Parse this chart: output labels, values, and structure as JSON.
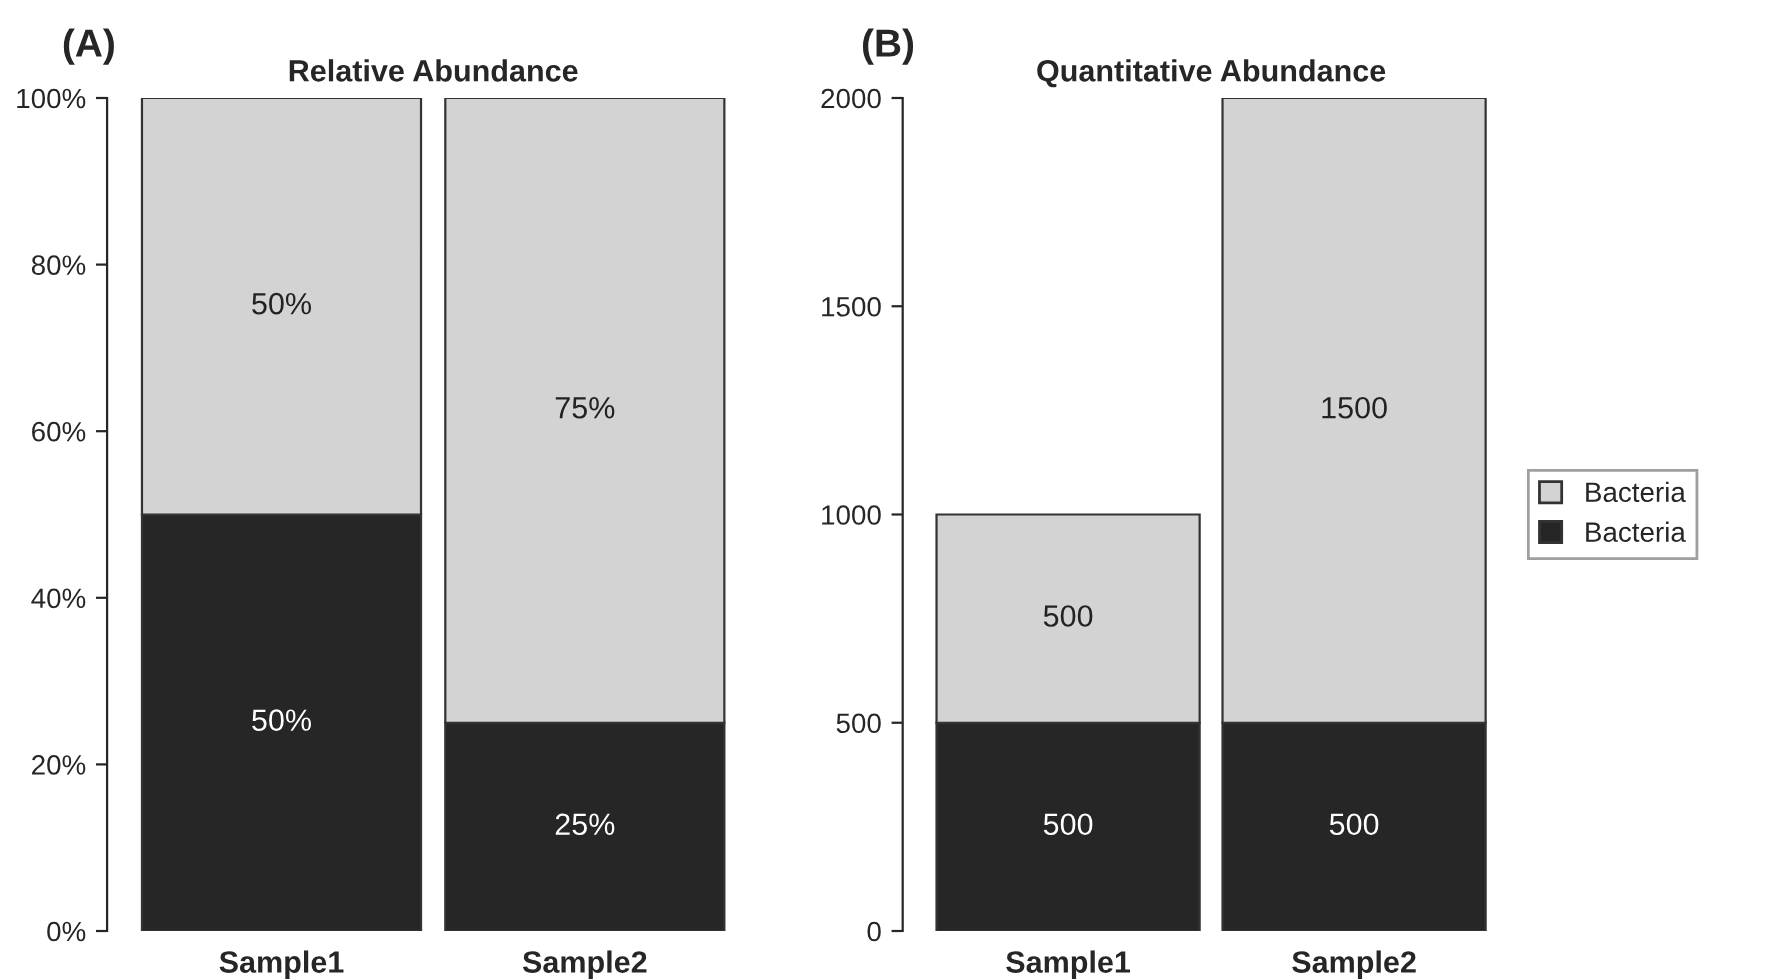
{
  "chart_data": [
    {
      "type": "bar",
      "title": "Relative Abundance",
      "annotations": [
        "(A)"
      ],
      "categories": [
        "Sample1",
        "Sample2"
      ],
      "stacked": true,
      "ylim": [
        0,
        100
      ],
      "yticks": [
        {
          "value": 0,
          "label": "0%"
        },
        {
          "value": 20,
          "label": "20%"
        },
        {
          "value": 40,
          "label": "40%"
        },
        {
          "value": 60,
          "label": "60%"
        },
        {
          "value": 80,
          "label": "80%"
        },
        {
          "value": 100,
          "label": "100%"
        }
      ],
      "series": [
        {
          "color": "#262626",
          "values": [
            50,
            25
          ],
          "value_labels": [
            "50%",
            "25%"
          ]
        },
        {
          "color": "#d3d3d3",
          "values": [
            50,
            75
          ],
          "value_labels": [
            "50%",
            "75%"
          ]
        }
      ],
      "legend": false,
      "grid": false
    },
    {
      "type": "bar",
      "title": "Quantitative Abundance",
      "annotations": [
        "(B)"
      ],
      "categories": [
        "Sample1",
        "Sample2"
      ],
      "stacked": true,
      "ylim": [
        0,
        2000
      ],
      "yticks": [
        0,
        500,
        1000,
        1500,
        2000
      ],
      "data_labels": true,
      "series": [
        {
          "name": "Bacteria",
          "color": "#262626",
          "values": [
            500,
            500
          ]
        },
        {
          "name": "Bacteria",
          "color": "#d3d3d3",
          "values": [
            500,
            1500
          ]
        }
      ],
      "legend": "right",
      "grid": false
    }
  ]
}
